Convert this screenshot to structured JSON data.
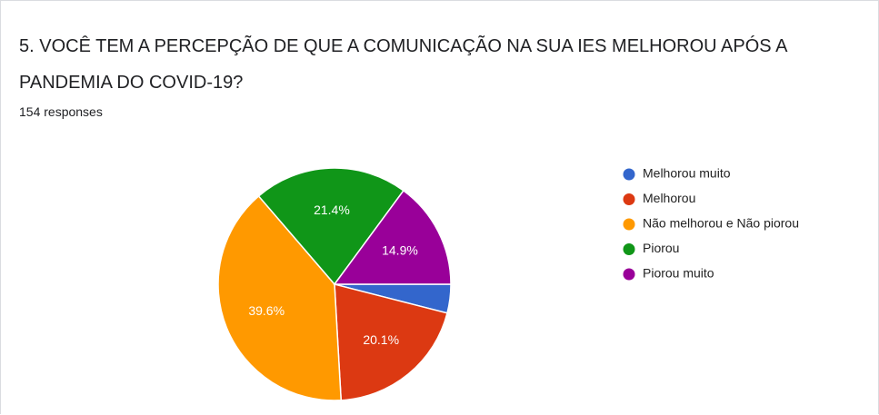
{
  "title": "5. VOCÊ TEM A PERCEPÇÃO DE QUE A COMUNICAÇÃO NA SUA IES MELHOROU APÓS A PANDEMIA DO COVID-19?",
  "subtitle": "154 responses",
  "chart_data": {
    "type": "pie",
    "categories": [
      "Melhorou muito",
      "Melhorou",
      "Não melhorou e Não piorou",
      "Piorou",
      "Piorou muito"
    ],
    "values": [
      4.0,
      20.1,
      39.6,
      21.4,
      14.9
    ],
    "value_labels": [
      null,
      "20.1%",
      "39.6%",
      "21.4%",
      "14.9%"
    ],
    "colors": [
      "#3366cc",
      "#dc3912",
      "#ff9900",
      "#109618",
      "#990099"
    ],
    "legend": "right"
  }
}
